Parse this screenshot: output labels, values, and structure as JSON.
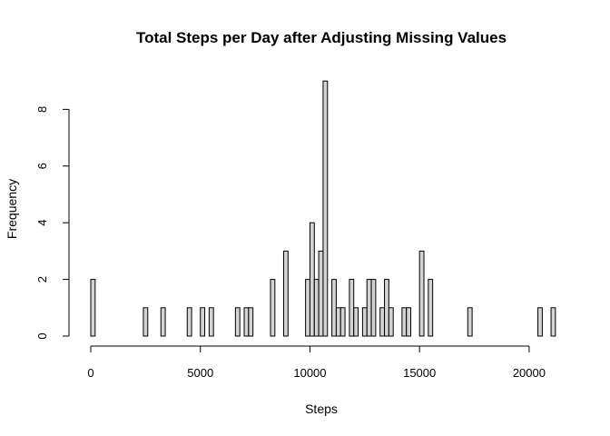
{
  "chart_data": {
    "type": "bar",
    "subtype": "histogram",
    "title": "Total Steps per Day after Adjusting Missing Values",
    "xlabel": "Steps",
    "ylabel": "Frequency",
    "bin_width": 200,
    "xlim": [
      0,
      21200
    ],
    "ylim": [
      0,
      9
    ],
    "x_ticks": [
      0,
      5000,
      10000,
      15000,
      20000
    ],
    "y_ticks": [
      0,
      2,
      4,
      6,
      8
    ],
    "grid": false,
    "bar_color": "#d3d3d3",
    "bins": [
      {
        "start": 0,
        "count": 2
      },
      {
        "start": 2400,
        "count": 1
      },
      {
        "start": 3200,
        "count": 1
      },
      {
        "start": 4400,
        "count": 1
      },
      {
        "start": 5000,
        "count": 1
      },
      {
        "start": 5400,
        "count": 1
      },
      {
        "start": 6600,
        "count": 1
      },
      {
        "start": 7000,
        "count": 1
      },
      {
        "start": 7200,
        "count": 1
      },
      {
        "start": 8200,
        "count": 2
      },
      {
        "start": 8800,
        "count": 3
      },
      {
        "start": 9800,
        "count": 2
      },
      {
        "start": 10000,
        "count": 4
      },
      {
        "start": 10200,
        "count": 2
      },
      {
        "start": 10400,
        "count": 3
      },
      {
        "start": 10600,
        "count": 9
      },
      {
        "start": 11000,
        "count": 2
      },
      {
        "start": 11200,
        "count": 1
      },
      {
        "start": 11400,
        "count": 1
      },
      {
        "start": 11800,
        "count": 2
      },
      {
        "start": 12000,
        "count": 1
      },
      {
        "start": 12400,
        "count": 1
      },
      {
        "start": 12600,
        "count": 2
      },
      {
        "start": 12800,
        "count": 2
      },
      {
        "start": 13200,
        "count": 1
      },
      {
        "start": 13400,
        "count": 2
      },
      {
        "start": 13600,
        "count": 1
      },
      {
        "start": 14200,
        "count": 1
      },
      {
        "start": 14400,
        "count": 1
      },
      {
        "start": 15000,
        "count": 3
      },
      {
        "start": 15400,
        "count": 2
      },
      {
        "start": 17200,
        "count": 1
      },
      {
        "start": 20400,
        "count": 1
      },
      {
        "start": 21000,
        "count": 1
      }
    ]
  }
}
